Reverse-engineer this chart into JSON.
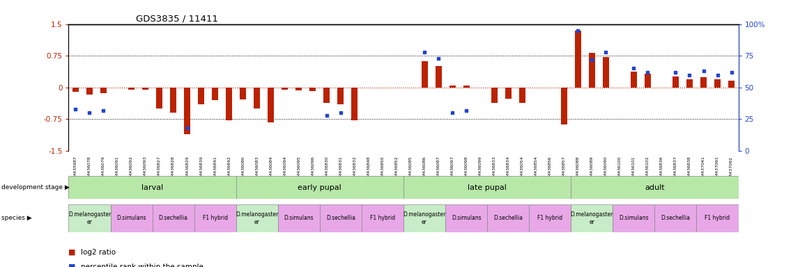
{
  "title": "GDS3835 / 11411",
  "samples": [
    "GSM435987",
    "GSM436078",
    "GSM436079",
    "GSM436091",
    "GSM436092",
    "GSM436093",
    "GSM436827",
    "GSM436828",
    "GSM436829",
    "GSM436839",
    "GSM436841",
    "GSM436842",
    "GSM436080",
    "GSM436083",
    "GSM436084",
    "GSM436094",
    "GSM436095",
    "GSM436096",
    "GSM436830",
    "GSM436831",
    "GSM436832",
    "GSM436848",
    "GSM436850",
    "GSM436852",
    "GSM436085",
    "GSM436086",
    "GSM436087",
    "GSM436097",
    "GSM436098",
    "GSM436099",
    "GSM436833",
    "GSM436834",
    "GSM436054",
    "GSM436854",
    "GSM436856",
    "GSM436857",
    "GSM436088",
    "GSM436089",
    "GSM436090",
    "GSM436100",
    "GSM436101",
    "GSM436102",
    "GSM436836",
    "GSM436837",
    "GSM436838",
    "GSM437041",
    "GSM437091",
    "GSM437092"
  ],
  "log2ratio": [
    -0.1,
    -0.17,
    -0.13,
    0.0,
    -0.05,
    -0.06,
    -0.5,
    -0.6,
    -1.1,
    -0.4,
    -0.3,
    -0.78,
    -0.28,
    -0.5,
    -0.82,
    -0.05,
    -0.07,
    -0.09,
    -0.36,
    -0.4,
    -0.78,
    0.0,
    0.0,
    0.0,
    0.0,
    0.62,
    0.5,
    0.04,
    0.04,
    0.0,
    -0.36,
    -0.26,
    -0.36,
    0.0,
    0.0,
    -0.88,
    1.35,
    0.82,
    0.72,
    0.0,
    0.38,
    0.32,
    0.0,
    0.26,
    0.2,
    0.24,
    0.2,
    0.16
  ],
  "percentile": [
    33,
    30,
    32,
    null,
    null,
    null,
    null,
    null,
    18,
    null,
    null,
    null,
    null,
    null,
    null,
    null,
    null,
    null,
    28,
    30,
    null,
    null,
    null,
    null,
    null,
    78,
    73,
    30,
    32,
    null,
    null,
    null,
    null,
    null,
    null,
    null,
    95,
    72,
    78,
    null,
    65,
    62,
    null,
    62,
    60,
    63,
    60,
    62
  ],
  "dev_stage_groups": [
    {
      "label": "larval",
      "start": 0,
      "end": 12
    },
    {
      "label": "early pupal",
      "start": 12,
      "end": 24
    },
    {
      "label": "late pupal",
      "start": 24,
      "end": 36
    },
    {
      "label": "adult",
      "start": 36,
      "end": 48
    }
  ],
  "species_groups": [
    {
      "label": "D.melanogaster\ner",
      "start": 0,
      "end": 3,
      "color": "#c8ecc8"
    },
    {
      "label": "D.simulans",
      "start": 3,
      "end": 6,
      "color": "#e8a8e8"
    },
    {
      "label": "D.sechellia",
      "start": 6,
      "end": 9,
      "color": "#e8a8e8"
    },
    {
      "label": "F1 hybrid",
      "start": 9,
      "end": 12,
      "color": "#e8a8e8"
    },
    {
      "label": "D.melanogaster\ner",
      "start": 12,
      "end": 15,
      "color": "#c8ecc8"
    },
    {
      "label": "D.simulans",
      "start": 15,
      "end": 18,
      "color": "#e8a8e8"
    },
    {
      "label": "D.sechellia",
      "start": 18,
      "end": 21,
      "color": "#e8a8e8"
    },
    {
      "label": "F1 hybrid",
      "start": 21,
      "end": 24,
      "color": "#e8a8e8"
    },
    {
      "label": "D.melanogaster\ner",
      "start": 24,
      "end": 27,
      "color": "#c8ecc8"
    },
    {
      "label": "D.simulans",
      "start": 27,
      "end": 30,
      "color": "#e8a8e8"
    },
    {
      "label": "D.sechellia",
      "start": 30,
      "end": 33,
      "color": "#e8a8e8"
    },
    {
      "label": "F1 hybrid",
      "start": 33,
      "end": 36,
      "color": "#e8a8e8"
    },
    {
      "label": "D.melanogaster\ner",
      "start": 36,
      "end": 39,
      "color": "#c8ecc8"
    },
    {
      "label": "D.simulans",
      "start": 39,
      "end": 42,
      "color": "#e8a8e8"
    },
    {
      "label": "D.sechellia",
      "start": 42,
      "end": 45,
      "color": "#e8a8e8"
    },
    {
      "label": "F1 hybrid",
      "start": 45,
      "end": 48,
      "color": "#e8a8e8"
    }
  ],
  "left_ylim": [
    -1.5,
    1.5
  ],
  "right_ylim": [
    0,
    100
  ],
  "bar_color": "#bb2200",
  "marker_color": "#2244cc",
  "dev_stage_color_light": "#c8eeb8",
  "dev_stage_color_dark": "#88cc66",
  "background_color": "#ffffff"
}
